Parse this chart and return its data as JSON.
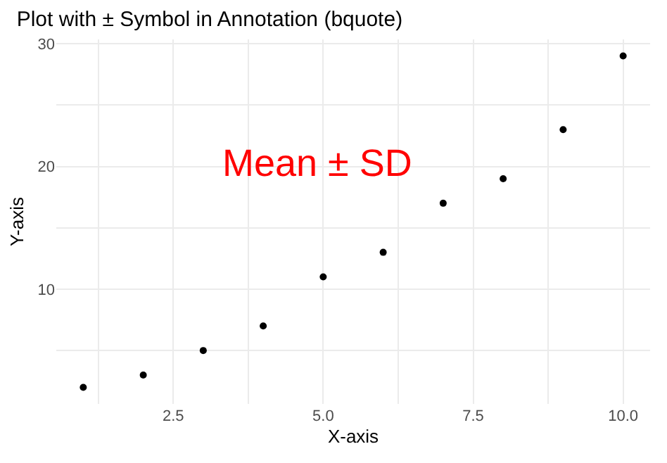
{
  "chart_data": {
    "type": "scatter",
    "title": "Plot with ± Symbol in Annotation (bquote)",
    "xlabel": "X-axis",
    "ylabel": "Y-axis",
    "x": [
      1,
      2,
      3,
      4,
      5,
      6,
      7,
      8,
      9,
      10
    ],
    "values": [
      2,
      3,
      5,
      7,
      11,
      13,
      17,
      19,
      23,
      29
    ],
    "color": "#000000",
    "marker": "circle",
    "xlim": [
      0.55,
      10.45
    ],
    "xticks": [
      {
        "value": 1.25,
        "label": null
      },
      2.5,
      {
        "value": 3.75,
        "label": null
      },
      {
        "value": 5,
        "label": "5.0"
      },
      {
        "value": 6.25,
        "label": null
      },
      7.5,
      {
        "value": 8.75,
        "label": null
      },
      {
        "value": 10,
        "label": "10.0"
      }
    ],
    "ylim": [
      0.65,
      30.35
    ],
    "yticks": [
      {
        "value": 5,
        "label": null
      },
      10,
      {
        "value": 15,
        "label": null
      },
      20,
      {
        "value": 25,
        "label": null
      },
      30
    ],
    "grid": true,
    "annotations": [
      "Mean ± SD"
    ]
  }
}
